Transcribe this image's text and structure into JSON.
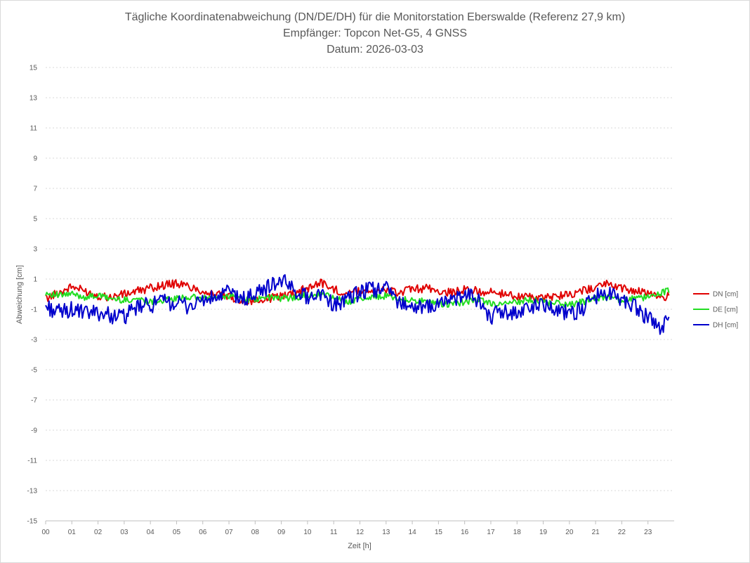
{
  "chart_data": {
    "type": "line",
    "title_lines": [
      "Tägliche Koordinatenabweichung (DN/DE/DH) für die Monitorstation Eberswalde (Referenz 27,9 km)",
      "Empfänger: Topcon Net-G5, 4 GNSS",
      "Datum: 2026-03-03"
    ],
    "xlabel": "Zeit [h]",
    "ylabel": "Abweichung [cm]",
    "xlim": [
      0,
      24
    ],
    "ylim": [
      -15,
      15
    ],
    "x_tick_labels": [
      "00",
      "01",
      "02",
      "03",
      "04",
      "05",
      "06",
      "07",
      "08",
      "09",
      "10",
      "11",
      "12",
      "13",
      "14",
      "15",
      "16",
      "17",
      "18",
      "19",
      "20",
      "21",
      "22",
      "23"
    ],
    "y_ticks": [
      -15,
      -13,
      -11,
      -9,
      -7,
      -5,
      -3,
      -1,
      1,
      3,
      5,
      7,
      9,
      11,
      13,
      15
    ],
    "grid": "horizontal dotted",
    "legend_position": "right",
    "series": [
      {
        "name": "DN [cm]",
        "color": "#e00000",
        "x": [
          0,
          0.5,
          1,
          1.5,
          2,
          2.5,
          3,
          3.5,
          4,
          4.5,
          5,
          5.5,
          6,
          6.5,
          7,
          7.5,
          8,
          8.5,
          9,
          9.5,
          10,
          10.5,
          11,
          11.5,
          12,
          12.5,
          13,
          13.5,
          14,
          14.5,
          15,
          15.5,
          16,
          16.5,
          17,
          17.5,
          18,
          18.5,
          19,
          19.5,
          20,
          20.5,
          21,
          21.5,
          22,
          22.5,
          23,
          23.5,
          23.8
        ],
        "values": [
          -0.3,
          0.1,
          0.5,
          0.2,
          -0.1,
          -0.2,
          0.0,
          0.2,
          0.4,
          0.6,
          0.7,
          0.5,
          0.2,
          0.0,
          -0.2,
          -0.4,
          -0.5,
          -0.3,
          -0.1,
          0.1,
          0.4,
          0.8,
          0.3,
          0.1,
          0.2,
          0.3,
          0.2,
          0.1,
          0.3,
          0.4,
          0.2,
          0.1,
          0.3,
          0.2,
          0.1,
          0.0,
          -0.1,
          -0.2,
          -0.3,
          -0.1,
          0.0,
          0.2,
          0.5,
          0.7,
          0.4,
          0.2,
          0.1,
          -0.2,
          -0.1
        ]
      },
      {
        "name": "DE [cm]",
        "color": "#22dd22",
        "x": [
          0,
          0.5,
          1,
          1.5,
          2,
          2.5,
          3,
          3.5,
          4,
          4.5,
          5,
          5.5,
          6,
          6.5,
          7,
          7.5,
          8,
          8.5,
          9,
          9.5,
          10,
          10.5,
          11,
          11.5,
          12,
          12.5,
          13,
          13.5,
          14,
          14.5,
          15,
          15.5,
          16,
          16.5,
          17,
          17.5,
          18,
          18.5,
          19,
          19.5,
          20,
          20.5,
          21,
          21.5,
          22,
          22.5,
          23,
          23.5,
          23.8
        ],
        "values": [
          0.1,
          -0.1,
          0.0,
          -0.2,
          -0.1,
          -0.3,
          -0.4,
          -0.3,
          -0.5,
          -0.4,
          -0.3,
          -0.2,
          -0.3,
          -0.2,
          -0.1,
          -0.3,
          -0.4,
          -0.2,
          -0.3,
          -0.2,
          -0.1,
          0.0,
          -0.2,
          -0.5,
          -0.3,
          -0.2,
          -0.1,
          -0.3,
          -0.4,
          -0.5,
          -0.6,
          -0.7,
          -0.5,
          -0.4,
          -0.6,
          -0.7,
          -0.5,
          -0.4,
          -0.5,
          -0.6,
          -0.7,
          -0.5,
          -0.3,
          -0.2,
          -0.4,
          -0.3,
          -0.2,
          0.1,
          0.2
        ]
      },
      {
        "name": "DH [cm]",
        "color": "#0000cc",
        "x": [
          0,
          0.5,
          1,
          1.5,
          2,
          2.5,
          3,
          3.5,
          4,
          4.5,
          5,
          5.5,
          6,
          6.5,
          7,
          7.5,
          8,
          8.5,
          9,
          9.5,
          10,
          10.5,
          11,
          11.5,
          12,
          12.5,
          13,
          13.5,
          14,
          14.5,
          15,
          15.5,
          16,
          16.5,
          17,
          17.5,
          18,
          18.5,
          19,
          19.5,
          20,
          20.5,
          21,
          21.5,
          22,
          22.5,
          23,
          23.5,
          23.8
        ],
        "values": [
          -0.8,
          -1.2,
          -1.0,
          -1.3,
          -1.2,
          -1.4,
          -1.5,
          -0.9,
          -0.7,
          -0.5,
          -0.6,
          -0.8,
          -0.4,
          -0.3,
          0.2,
          -0.4,
          0.0,
          0.5,
          0.9,
          0.3,
          -0.2,
          0.1,
          -0.7,
          -0.4,
          0.1,
          0.3,
          0.4,
          -0.5,
          -0.8,
          -1.0,
          -0.6,
          -0.4,
          -0.1,
          -0.3,
          -1.5,
          -1.1,
          -1.3,
          -0.8,
          -0.7,
          -0.9,
          -1.3,
          -1.0,
          -0.2,
          0.2,
          -0.5,
          -0.8,
          -1.6,
          -2.3,
          -1.4
        ]
      }
    ]
  }
}
